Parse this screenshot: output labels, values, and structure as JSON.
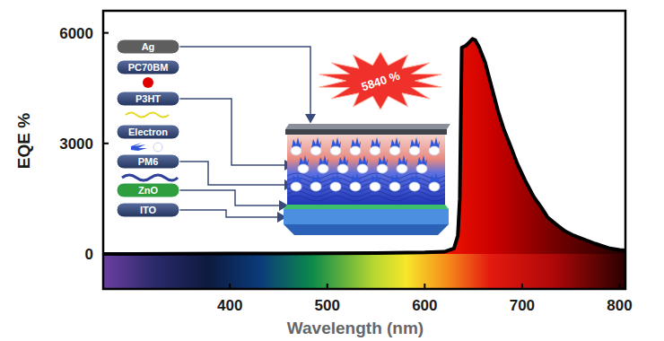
{
  "chart_data": {
    "type": "area",
    "x_label": "Wavelength (nm)",
    "y_label": "EQE %",
    "x": [
      270,
      300,
      350,
      400,
      450,
      500,
      550,
      600,
      620,
      630,
      634,
      636,
      638,
      642,
      646,
      649,
      652,
      656,
      662,
      668,
      675,
      681,
      687,
      695,
      703,
      712,
      720,
      726,
      735,
      744,
      753,
      763,
      775,
      790,
      800,
      806
    ],
    "values": [
      0,
      0,
      5,
      10,
      15,
      20,
      25,
      40,
      60,
      150,
      500,
      1500,
      5600,
      5650,
      5750,
      5840,
      5800,
      5600,
      5200,
      4600,
      3900,
      3400,
      3000,
      2450,
      2000,
      1550,
      1250,
      1000,
      800,
      620,
      500,
      400,
      280,
      150,
      110,
      100
    ],
    "xlim": [
      270,
      806
    ],
    "ylim": [
      -950,
      6600
    ],
    "xticks": [
      400,
      500,
      600,
      700,
      800
    ],
    "yticks": [
      0,
      3000,
      6000
    ],
    "color": "#ff1a00",
    "grid": false,
    "annotation": "5840 %",
    "inset": {
      "labels": [
        "Ag",
        "PC70BM",
        "P3HT",
        "Electron",
        "PM6",
        "ZnO",
        "ITO"
      ]
    }
  }
}
